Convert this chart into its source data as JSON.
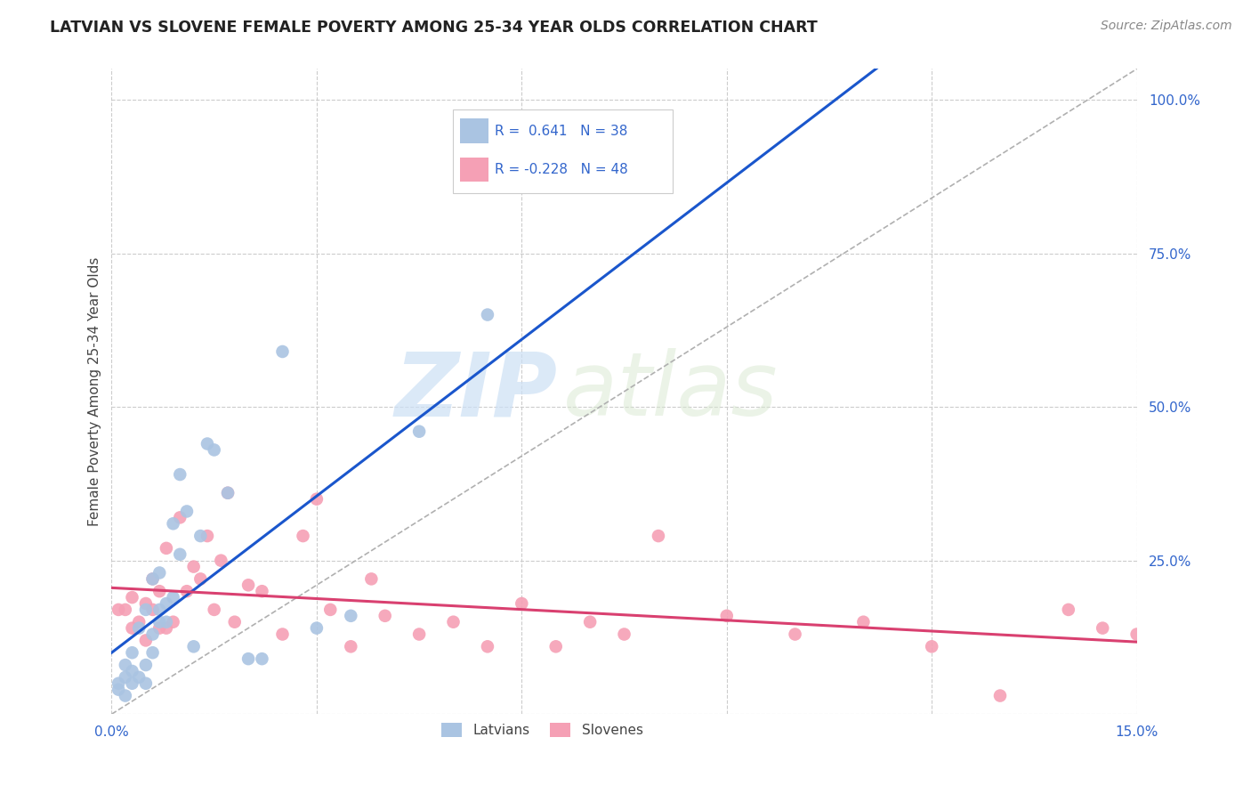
{
  "title": "LATVIAN VS SLOVENE FEMALE POVERTY AMONG 25-34 YEAR OLDS CORRELATION CHART",
  "source": "Source: ZipAtlas.com",
  "ylabel": "Female Poverty Among 25-34 Year Olds",
  "xlim": [
    0.0,
    0.15
  ],
  "ylim": [
    0.0,
    1.05
  ],
  "yticks": [
    0.0,
    0.25,
    0.5,
    0.75,
    1.0
  ],
  "ytick_labels": [
    "",
    "25.0%",
    "50.0%",
    "75.0%",
    "100.0%"
  ],
  "xticks": [
    0.0,
    0.03,
    0.06,
    0.09,
    0.12,
    0.15
  ],
  "xtick_labels": [
    "0.0%",
    "",
    "",
    "",
    "",
    "15.0%"
  ],
  "latvian_color": "#aac4e2",
  "slovene_color": "#f5a0b5",
  "latvian_line_color": "#1a56cc",
  "slovene_line_color": "#d94070",
  "diagonal_color": "#b0b0b0",
  "watermark_zip": "ZIP",
  "watermark_atlas": "atlas",
  "R_latvian": 0.641,
  "N_latvian": 38,
  "R_slovene": -0.228,
  "N_slovene": 48,
  "legend_text_color": "#3366cc",
  "latvians_x": [
    0.001,
    0.001,
    0.002,
    0.002,
    0.002,
    0.003,
    0.003,
    0.003,
    0.004,
    0.004,
    0.005,
    0.005,
    0.005,
    0.006,
    0.006,
    0.006,
    0.007,
    0.007,
    0.007,
    0.008,
    0.008,
    0.009,
    0.009,
    0.01,
    0.01,
    0.011,
    0.012,
    0.013,
    0.014,
    0.015,
    0.017,
    0.02,
    0.022,
    0.025,
    0.03,
    0.035,
    0.045,
    0.055
  ],
  "latvians_y": [
    0.04,
    0.05,
    0.03,
    0.06,
    0.08,
    0.05,
    0.07,
    0.1,
    0.06,
    0.14,
    0.05,
    0.08,
    0.17,
    0.1,
    0.13,
    0.22,
    0.15,
    0.17,
    0.23,
    0.15,
    0.18,
    0.19,
    0.31,
    0.26,
    0.39,
    0.33,
    0.11,
    0.29,
    0.44,
    0.43,
    0.36,
    0.09,
    0.09,
    0.59,
    0.14,
    0.16,
    0.46,
    0.65
  ],
  "slovenes_x": [
    0.001,
    0.002,
    0.003,
    0.003,
    0.004,
    0.005,
    0.005,
    0.006,
    0.006,
    0.007,
    0.007,
    0.008,
    0.008,
    0.009,
    0.01,
    0.011,
    0.012,
    0.013,
    0.014,
    0.015,
    0.016,
    0.017,
    0.018,
    0.02,
    0.022,
    0.025,
    0.028,
    0.03,
    0.032,
    0.035,
    0.038,
    0.04,
    0.045,
    0.05,
    0.055,
    0.06,
    0.065,
    0.07,
    0.075,
    0.08,
    0.09,
    0.1,
    0.11,
    0.12,
    0.13,
    0.14,
    0.145,
    0.15
  ],
  "slovenes_y": [
    0.17,
    0.17,
    0.14,
    0.19,
    0.15,
    0.12,
    0.18,
    0.17,
    0.22,
    0.14,
    0.2,
    0.14,
    0.27,
    0.15,
    0.32,
    0.2,
    0.24,
    0.22,
    0.29,
    0.17,
    0.25,
    0.36,
    0.15,
    0.21,
    0.2,
    0.13,
    0.29,
    0.35,
    0.17,
    0.11,
    0.22,
    0.16,
    0.13,
    0.15,
    0.11,
    0.18,
    0.11,
    0.15,
    0.13,
    0.29,
    0.16,
    0.13,
    0.15,
    0.11,
    0.03,
    0.17,
    0.14,
    0.13
  ]
}
